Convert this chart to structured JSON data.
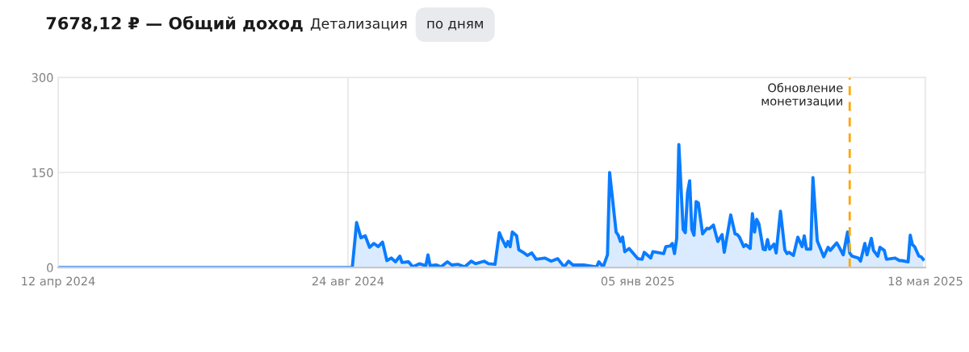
{
  "chart_data": {
    "type": "area",
    "title": "7678,12 ₽ — Общий доход",
    "annotations": [
      "Детализация",
      "по дням"
    ],
    "x": [
      "2024-04-12",
      "2024-08-26",
      "2024-08-28",
      "2024-08-30",
      "2024-09-01",
      "2024-09-03",
      "2024-09-05",
      "2024-09-07",
      "2024-09-09",
      "2024-09-11",
      "2024-09-13",
      "2024-09-15",
      "2024-09-17",
      "2024-09-18",
      "2024-09-21",
      "2024-09-23",
      "2024-09-26",
      "2024-09-29",
      "2024-09-30",
      "2024-10-01",
      "2024-10-04",
      "2024-10-06",
      "2024-10-09",
      "2024-10-11",
      "2024-10-14",
      "2024-10-17",
      "2024-10-20",
      "2024-10-22",
      "2024-10-26",
      "2024-10-28",
      "2024-10-31",
      "2024-11-02",
      "2024-11-03",
      "2024-11-05",
      "2024-11-06",
      "2024-11-07",
      "2024-11-08",
      "2024-11-10",
      "2024-11-11",
      "2024-11-13",
      "2024-11-15",
      "2024-11-17",
      "2024-11-19",
      "2024-11-23",
      "2024-11-26",
      "2024-11-29",
      "2024-12-02",
      "2024-12-04",
      "2024-12-06",
      "2024-12-11",
      "2024-12-17",
      "2024-12-18",
      "2024-12-20",
      "2024-12-22",
      "2024-12-23",
      "2024-12-26",
      "2024-12-27",
      "2024-12-28",
      "2024-12-29",
      "2024-12-30",
      "2025-01-01",
      "2025-01-05",
      "2025-01-07",
      "2025-01-08",
      "2025-01-11",
      "2025-01-12",
      "2025-01-17",
      "2025-01-18",
      "2025-01-20",
      "2025-01-21",
      "2025-01-22",
      "2025-01-23",
      "2025-01-24",
      "2025-01-26",
      "2025-01-27",
      "2025-01-28",
      "2025-01-29",
      "2025-01-30",
      "2025-01-31",
      "2025-02-01",
      "2025-02-02",
      "2025-02-04",
      "2025-02-06",
      "2025-02-07",
      "2025-02-09",
      "2025-02-11",
      "2025-02-13",
      "2025-02-14",
      "2025-02-17",
      "2025-02-19",
      "2025-02-20",
      "2025-02-21",
      "2025-02-23",
      "2025-02-24",
      "2025-02-26",
      "2025-02-27",
      "2025-02-28",
      "2025-03-01",
      "2025-03-02",
      "2025-03-04",
      "2025-03-05",
      "2025-03-06",
      "2025-03-07",
      "2025-03-09",
      "2025-03-10",
      "2025-03-12",
      "2025-03-14",
      "2025-03-15",
      "2025-03-16",
      "2025-03-18",
      "2025-03-20",
      "2025-03-22",
      "2025-03-23",
      "2025-03-24",
      "2025-03-26",
      "2025-03-27",
      "2025-03-29",
      "2025-04-01",
      "2025-04-03",
      "2025-04-04",
      "2025-04-07",
      "2025-04-08",
      "2025-04-10",
      "2025-04-12",
      "2025-04-13",
      "2025-04-14",
      "2025-04-17",
      "2025-04-18",
      "2025-04-20",
      "2025-04-21",
      "2025-04-23",
      "2025-04-24",
      "2025-04-26",
      "2025-04-27",
      "2025-04-29",
      "2025-04-30",
      "2025-05-04",
      "2025-05-06",
      "2025-05-07",
      "2025-05-10",
      "2025-05-11",
      "2025-05-12",
      "2025-05-13",
      "2025-05-15",
      "2025-05-16",
      "2025-05-17"
    ],
    "series": [
      {
        "color": "#0a7cff",
        "values": [
          0,
          0,
          71,
          47,
          50,
          32,
          38,
          33,
          40,
          11,
          15,
          9,
          18,
          8,
          9,
          1,
          6,
          3,
          20,
          3,
          4,
          1,
          9,
          4,
          5,
          1,
          10,
          6,
          10,
          6,
          5,
          55,
          47,
          33,
          41,
          33,
          56,
          50,
          28,
          24,
          19,
          23,
          13,
          15,
          10,
          14,
          1,
          10,
          4,
          4,
          1,
          9,
          1,
          20,
          150,
          56,
          51,
          41,
          48,
          25,
          30,
          14,
          13,
          24,
          15,
          25,
          22,
          33,
          34,
          38,
          22,
          46,
          194,
          60,
          55,
          118,
          137,
          60,
          51,
          104,
          102,
          53,
          62,
          61,
          67,
          41,
          52,
          24,
          83,
          53,
          52,
          48,
          33,
          36,
          30,
          85,
          56,
          76,
          69,
          29,
          28,
          44,
          29,
          37,
          23,
          89,
          28,
          22,
          24,
          19,
          48,
          33,
          50,
          29,
          29,
          142,
          42,
          17,
          32,
          27,
          39,
          33,
          20,
          56,
          23,
          18,
          15,
          10,
          38,
          20,
          46,
          27,
          18,
          32,
          27,
          13,
          15,
          11,
          11,
          9,
          51,
          36,
          33,
          18,
          17,
          13
        ]
      }
    ],
    "xlim": [
      "2024-04-12",
      "2025-05-18"
    ],
    "xticks": [
      {
        "value": "2024-04-12",
        "label": "12 апр 2024"
      },
      {
        "value": "2024-08-24",
        "label": "24 авг 2024"
      },
      {
        "value": "2025-01-05",
        "label": "05 янв 2025"
      },
      {
        "value": "2025-05-18",
        "label": "18 мая 2025"
      }
    ],
    "ylim": [
      0,
      300
    ],
    "yticks": [
      0,
      150,
      300
    ],
    "grid": true,
    "line_style": "solid",
    "marker": "none",
    "ref_lines": [
      {
        "axis": "x",
        "value": "2025-04-13",
        "label": "Обновление\nмонетизации",
        "color": "#ffa500",
        "line_style": "dashed"
      }
    ]
  }
}
